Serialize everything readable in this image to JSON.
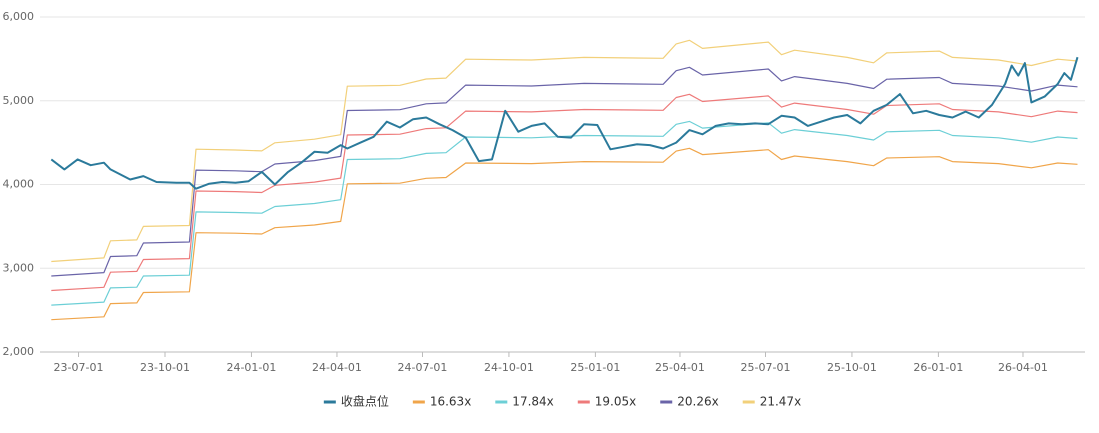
{
  "chart_data": {
    "type": "line",
    "ylim": [
      2000,
      6000
    ],
    "yticks": [
      {
        "value": 2000,
        "label": "2,000"
      },
      {
        "value": 3000,
        "label": "3,000"
      },
      {
        "value": 4000,
        "label": "4,000"
      },
      {
        "value": 5000,
        "label": "5,000"
      },
      {
        "value": 6000,
        "label": "6,000"
      }
    ],
    "xlim": [
      "23-05-21",
      "26-06-06"
    ],
    "xticks": [
      "23-07-01",
      "23-10-01",
      "24-01-01",
      "24-04-01",
      "24-07-01",
      "24-10-01",
      "25-01-01",
      "25-04-01",
      "25-07-01",
      "25-10-01",
      "26-01-01",
      "26-04-01"
    ],
    "grid": true,
    "legend": "bottom",
    "series": [
      {
        "name": "收盘点位",
        "color": "#2b7a9b",
        "x": [
          "23-06-02",
          "23-06-16",
          "23-06-30",
          "23-07-14",
          "23-07-28",
          "23-08-04",
          "23-08-25",
          "23-09-08",
          "23-09-22",
          "23-10-13",
          "23-10-27",
          "23-11-03",
          "23-11-17",
          "23-12-01",
          "23-12-15",
          "23-12-29",
          "24-01-12",
          "24-01-26",
          "24-02-09",
          "24-02-23",
          "24-03-08",
          "24-03-22",
          "24-04-05",
          "24-04-12",
          "24-04-26",
          "24-05-10",
          "24-05-24",
          "24-06-07",
          "24-06-21",
          "24-07-05",
          "24-07-19",
          "24-08-02",
          "24-08-16",
          "24-08-30",
          "24-09-13",
          "24-09-27",
          "24-10-11",
          "24-10-25",
          "24-11-08",
          "24-11-22",
          "24-12-06",
          "24-12-20",
          "25-01-03",
          "25-01-17",
          "25-01-31",
          "25-02-14",
          "25-02-28",
          "25-03-14",
          "25-03-28",
          "25-04-11",
          "25-04-25",
          "25-05-09",
          "25-05-23",
          "25-06-06",
          "25-06-20",
          "25-07-04",
          "25-07-18",
          "25-08-01",
          "25-08-15",
          "25-08-29",
          "25-09-12",
          "25-09-26",
          "25-10-10",
          "25-10-24",
          "25-11-07",
          "25-11-21",
          "25-12-05",
          "25-12-19",
          "26-01-02",
          "26-01-16",
          "26-01-30",
          "26-02-13",
          "26-02-27",
          "26-03-13",
          "26-03-20",
          "26-03-27",
          "26-04-03",
          "26-04-10",
          "26-04-24",
          "26-05-08",
          "26-05-15",
          "26-05-22",
          "26-05-29"
        ],
        "values": [
          4300,
          4180,
          4300,
          4230,
          4260,
          4180,
          4060,
          4100,
          4030,
          4020,
          4020,
          3950,
          4010,
          4030,
          4020,
          4040,
          4150,
          4000,
          4150,
          4260,
          4390,
          4380,
          4470,
          4430,
          4500,
          4570,
          4750,
          4680,
          4780,
          4800,
          4720,
          4650,
          4560,
          4280,
          4300,
          4880,
          4630,
          4700,
          4730,
          4570,
          4560,
          4720,
          4710,
          4420,
          4450,
          4480,
          4470,
          4430,
          4500,
          4650,
          4600,
          4700,
          4730,
          4720,
          4730,
          4720,
          4820,
          4800,
          4700,
          4750,
          4800,
          4830,
          4730,
          4880,
          4950,
          5080,
          4850,
          4880,
          4830,
          4800,
          4870,
          4800,
          4950,
          5200,
          5420,
          5300,
          5450,
          4980,
          5050,
          5200,
          5330,
          5250,
          5520
        ]
      },
      {
        "name": "16.63x",
        "color": "#f0a54a",
        "x": [
          "23-06-02",
          "23-07-28",
          "23-08-04",
          "23-09-01",
          "23-09-08",
          "23-10-27",
          "23-11-03",
          "23-12-15",
          "24-01-12",
          "24-01-26",
          "24-03-08",
          "24-04-05",
          "24-04-12",
          "24-06-07",
          "24-07-05",
          "24-07-26",
          "24-08-16",
          "24-10-25",
          "24-12-20",
          "25-03-14",
          "25-03-28",
          "25-04-11",
          "25-04-25",
          "25-07-04",
          "25-07-18",
          "25-08-01",
          "25-09-26",
          "25-10-24",
          "25-11-07",
          "26-01-02",
          "26-01-16",
          "26-03-06",
          "26-04-10",
          "26-05-08",
          "26-05-29"
        ],
        "values": [
          2386,
          2420,
          2578,
          2586,
          2711,
          2719,
          3424,
          3418,
          3409,
          3484,
          3517,
          3559,
          4008,
          4016,
          4074,
          4083,
          4257,
          4249,
          4274,
          4266,
          4399,
          4432,
          4357,
          4415,
          4299,
          4340,
          4274,
          4224,
          4316,
          4332,
          4274,
          4249,
          4199,
          4257,
          4241
        ]
      },
      {
        "name": "17.84x",
        "color": "#6ccfd6",
        "x": [
          "23-06-02",
          "23-07-28",
          "23-08-04",
          "23-09-01",
          "23-09-08",
          "23-10-27",
          "23-11-03",
          "23-12-15",
          "24-01-12",
          "24-01-26",
          "24-03-08",
          "24-04-05",
          "24-04-12",
          "24-06-07",
          "24-07-05",
          "24-07-26",
          "24-08-16",
          "24-10-25",
          "24-12-20",
          "25-03-14",
          "25-03-28",
          "25-04-11",
          "25-04-25",
          "25-07-04",
          "25-07-18",
          "25-08-01",
          "25-09-26",
          "25-10-24",
          "25-11-07",
          "26-01-02",
          "26-01-16",
          "26-03-06",
          "26-04-10",
          "26-05-08",
          "26-05-29"
        ],
        "values": [
          2560,
          2596,
          2765,
          2774,
          2908,
          2917,
          3673,
          3666,
          3657,
          3737,
          3773,
          3818,
          4299,
          4308,
          4371,
          4380,
          4567,
          4558,
          4585,
          4576,
          4719,
          4754,
          4674,
          4737,
          4612,
          4656,
          4585,
          4531,
          4629,
          4647,
          4585,
          4558,
          4505,
          4567,
          4549
        ]
      },
      {
        "name": "19.05x",
        "color": "#ee7a7a",
        "x": [
          "23-06-02",
          "23-07-28",
          "23-08-04",
          "23-09-01",
          "23-09-08",
          "23-10-27",
          "23-11-03",
          "23-12-15",
          "24-01-12",
          "24-01-26",
          "24-03-08",
          "24-04-05",
          "24-04-12",
          "24-06-07",
          "24-07-05",
          "24-07-26",
          "24-08-16",
          "24-10-25",
          "24-12-20",
          "25-03-14",
          "25-03-28",
          "25-04-11",
          "25-04-25",
          "25-07-04",
          "25-07-18",
          "25-08-01",
          "25-09-26",
          "25-10-24",
          "25-11-07",
          "26-01-02",
          "26-01-16",
          "26-03-06",
          "26-04-10",
          "26-05-08",
          "26-05-29"
        ],
        "values": [
          2734,
          2772,
          2953,
          2962,
          3105,
          3115,
          3922,
          3915,
          3905,
          3991,
          4029,
          4077,
          4591,
          4601,
          4667,
          4677,
          4877,
          4867,
          4896,
          4886,
          5039,
          5077,
          4991,
          5058,
          4924,
          4972,
          4896,
          4839,
          4943,
          4963,
          4896,
          4867,
          4810,
          4877,
          4858
        ]
      },
      {
        "name": "20.26x",
        "color": "#6a64a8",
        "x": [
          "23-06-02",
          "23-07-28",
          "23-08-04",
          "23-09-01",
          "23-09-08",
          "23-10-27",
          "23-11-03",
          "23-12-15",
          "24-01-12",
          "24-01-26",
          "24-03-08",
          "24-04-05",
          "24-04-12",
          "24-06-07",
          "24-07-05",
          "24-07-26",
          "24-08-16",
          "24-10-25",
          "24-12-20",
          "25-03-14",
          "25-03-28",
          "25-04-11",
          "25-04-25",
          "25-07-04",
          "25-07-18",
          "25-08-01",
          "25-09-26",
          "25-10-24",
          "25-11-07",
          "26-01-02",
          "26-01-16",
          "26-03-06",
          "26-04-10",
          "26-05-08",
          "26-05-29"
        ],
        "values": [
          2907,
          2948,
          3140,
          3150,
          3302,
          3313,
          4172,
          4163,
          4153,
          4245,
          4285,
          4336,
          4883,
          4893,
          4964,
          4974,
          5187,
          5176,
          5207,
          5197,
          5359,
          5399,
          5308,
          5379,
          5237,
          5288,
          5207,
          5146,
          5257,
          5278,
          5207,
          5176,
          5116,
          5187,
          5166
        ]
      },
      {
        "name": "21.47x",
        "color": "#f2d07a",
        "x": [
          "23-06-02",
          "23-07-28",
          "23-08-04",
          "23-09-01",
          "23-09-08",
          "23-10-27",
          "23-11-03",
          "23-12-15",
          "24-01-12",
          "24-01-26",
          "24-03-08",
          "24-04-05",
          "24-04-12",
          "24-06-07",
          "24-07-05",
          "24-07-26",
          "24-08-16",
          "24-10-25",
          "24-12-20",
          "25-03-14",
          "25-03-28",
          "25-04-11",
          "25-04-25",
          "25-07-04",
          "25-07-18",
          "25-08-01",
          "25-09-26",
          "25-10-24",
          "25-11-07",
          "26-01-02",
          "26-01-16",
          "26-03-06",
          "26-04-10",
          "26-05-08",
          "26-05-29"
        ],
        "values": [
          3081,
          3124,
          3328,
          3339,
          3500,
          3510,
          4421,
          4412,
          4401,
          4498,
          4541,
          4595,
          5174,
          5185,
          5260,
          5271,
          5496,
          5486,
          5518,
          5507,
          5679,
          5722,
          5625,
          5700,
          5550,
          5604,
          5518,
          5453,
          5571,
          5593,
          5518,
          5486,
          5421,
          5496,
          5475
        ]
      }
    ]
  }
}
